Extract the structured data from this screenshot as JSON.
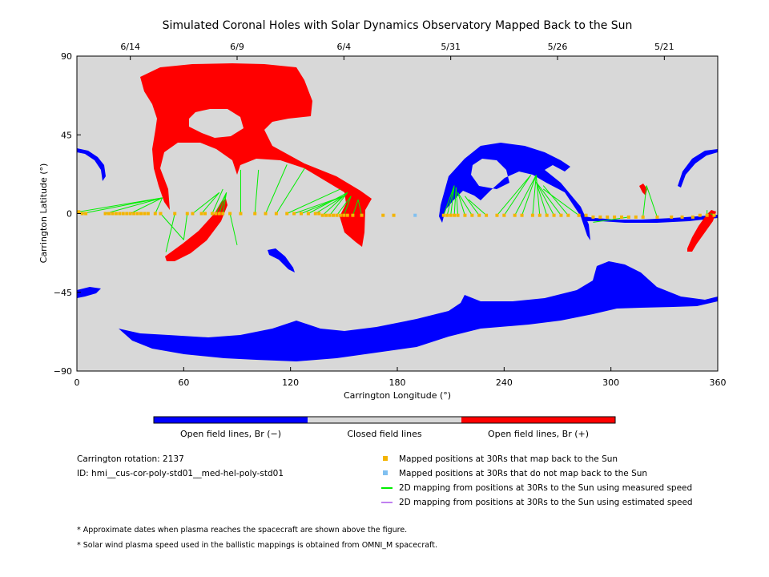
{
  "chart_data": {
    "type": "map",
    "title": "Simulated Coronal Holes with Solar Dynamics Observatory Mapped Back to the Sun",
    "xlabel": "Carrington Longitude (°)",
    "ylabel": "Carrington Latitude (°)",
    "xlim": [
      0,
      360
    ],
    "ylim": [
      -90,
      90
    ],
    "x_ticks": [
      "0",
      "60",
      "120",
      "180",
      "240",
      "300",
      "360"
    ],
    "y_ticks": [
      "90",
      "45",
      "0",
      "-45",
      "-90"
    ],
    "top_axis_dates": [
      {
        "label": "6/14",
        "longitude": 30
      },
      {
        "label": "6/9",
        "longitude": 90
      },
      {
        "label": "6/4",
        "longitude": 150
      },
      {
        "label": "5/31",
        "longitude": 210
      },
      {
        "label": "5/26",
        "longitude": 270
      },
      {
        "label": "5/21",
        "longitude": 330
      }
    ],
    "colorbar": {
      "labels": [
        "Open field lines, Br (−)",
        "Closed field lines",
        "Open field lines, Br (+)"
      ],
      "colors": [
        "#0000ff",
        "#d8d8d8",
        "#ff0000"
      ]
    },
    "regions": {
      "negative_open": "#0000ff",
      "positive_open": "#ff0000",
      "closed": "#d8d8d8"
    },
    "mapped_points_lon": [
      1,
      3,
      5,
      16,
      18,
      20,
      22,
      24,
      26,
      28,
      30,
      32,
      34,
      36,
      38,
      40,
      44,
      47,
      55,
      62,
      65,
      70,
      72,
      76,
      78,
      80,
      82,
      86,
      92,
      100,
      106,
      112,
      118,
      122,
      126,
      130,
      134,
      136,
      138,
      140,
      142,
      144,
      146,
      148,
      150,
      152,
      155,
      160,
      172,
      178,
      206,
      208,
      210,
      212,
      214,
      218,
      222,
      226,
      230,
      236,
      240,
      246,
      250,
      256,
      260,
      264,
      268,
      272,
      276,
      282,
      286,
      290,
      294,
      298,
      302,
      306,
      310,
      314,
      318,
      326,
      334,
      340,
      346,
      350,
      354,
      358
    ],
    "mapped_points_lat": [
      1,
      0,
      0,
      0,
      0,
      0,
      0,
      0,
      0,
      0,
      0,
      0,
      0,
      0,
      0,
      0,
      0,
      0,
      0,
      0,
      0,
      0,
      0,
      0,
      0,
      0,
      0,
      0,
      0,
      0,
      0,
      0,
      0,
      0,
      0,
      0,
      0,
      0,
      -1,
      -1,
      -1,
      -1,
      -1,
      -1,
      -1,
      -1,
      -1,
      -1,
      -1,
      -1,
      -1,
      -1,
      -1,
      -1,
      -1,
      -1,
      -1,
      -1,
      -1,
      -1,
      -1,
      -1,
      -1,
      -1,
      -1,
      -1,
      -1,
      -1,
      -1,
      -1,
      -1,
      -2,
      -2,
      -2,
      -2,
      -2,
      -2,
      -2,
      -2,
      -2,
      -2,
      -2,
      -2,
      -1,
      -1,
      -1
    ],
    "unmapped_points_lon": [
      190
    ],
    "unmapped_points_lat": [
      -1
    ],
    "info": {
      "rotation": "Carrington rotation: 2137",
      "id": "ID: hmi__cus-cor-poly-std01__med-hel-poly-std01"
    },
    "legend": [
      {
        "label": "Mapped positions at 30Rs that map back to the Sun",
        "color": "#f4b400",
        "marker": "square"
      },
      {
        "label": "Mapped positions at 30Rs that do not map back to the Sun",
        "color": "#80c0f0",
        "marker": "square"
      },
      {
        "label": "2D mapping from positions at 30Rs to the Sun using measured speed",
        "color": "#00ee00",
        "marker": "line"
      },
      {
        "label": "2D mapping from positions at 30Rs to the Sun using estimated speed",
        "color": "#c080f0",
        "marker": "line"
      }
    ],
    "notes": [
      "* Approximate dates when plasma reaches the spacecraft are shown above the figure.",
      "* Solar wind plasma speed used in the ballistic mappings is obtained from OMNI_M spacecraft."
    ]
  }
}
